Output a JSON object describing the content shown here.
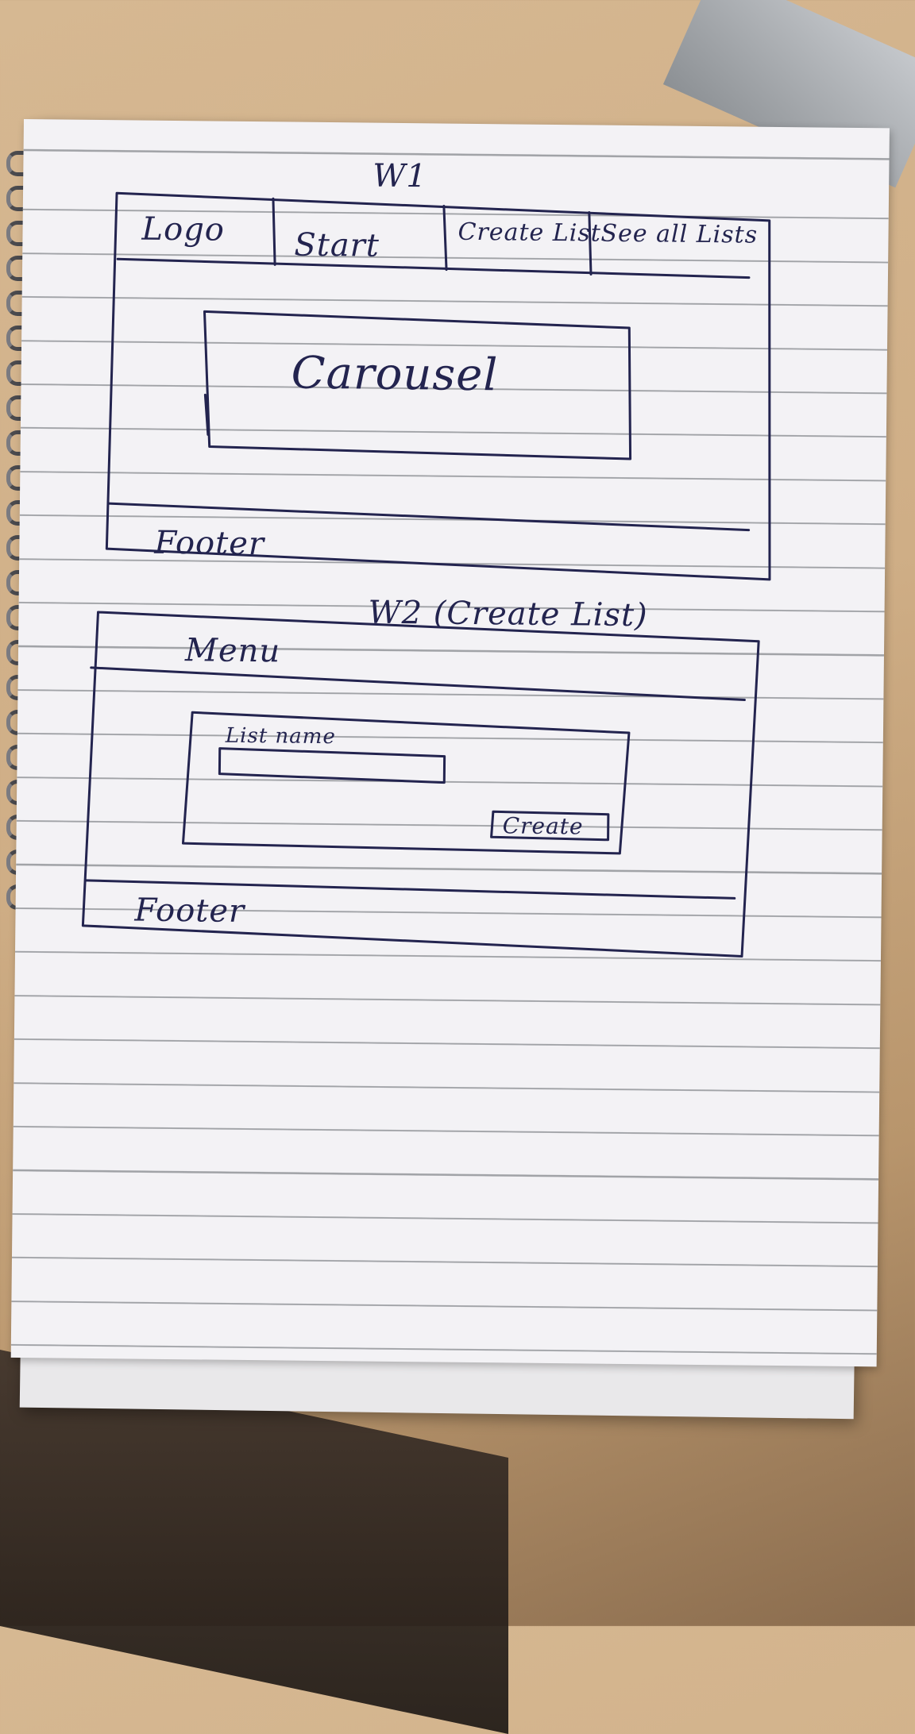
{
  "sketch": {
    "w1": {
      "title": "W1",
      "nav": [
        "Logo",
        "Start",
        "Create List",
        "See all Lists"
      ],
      "carousel": "Carousel",
      "footer": "Footer"
    },
    "w2": {
      "title": "W2 (Create List)",
      "menu": "Menu",
      "field_label": "List name",
      "button": "Create",
      "footer": "Footer"
    }
  },
  "colors": {
    "ink": "#23244f",
    "paper": "#f3f2f5",
    "desk": "#cfae86"
  }
}
